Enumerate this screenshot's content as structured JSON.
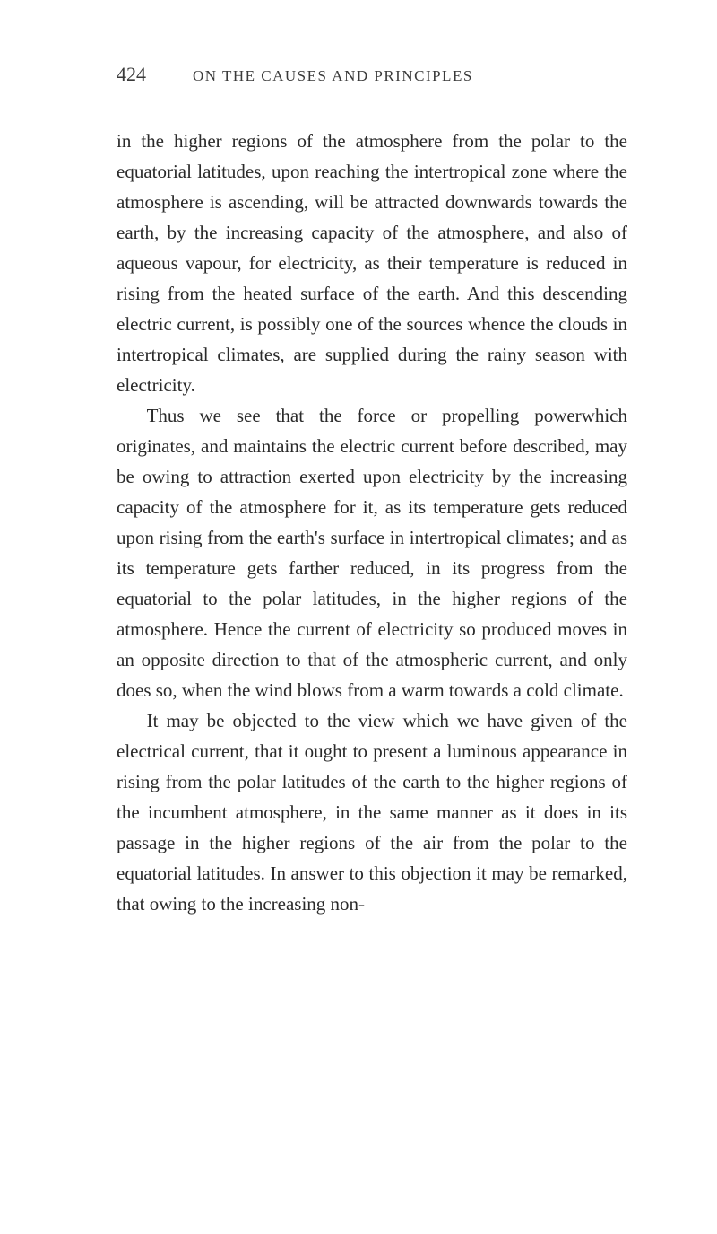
{
  "page": {
    "number": "424",
    "running_head": "ON THE CAUSES AND PRINCIPLES",
    "paragraphs": [
      "in the higher regions of the atmosphere from the polar to the equatorial latitudes, upon reaching the intertropical zone where the atmosphere is ascending, will be attracted downwards towards the earth, by the increasing capacity of the atmosphere, and also of aqueous vapour, for electricity, as their temperature is reduced in rising from the heated surface of the earth. And this descending electric current, is possibly one of the sources whence the clouds in intertropical climates, are supplied during the rainy season with electricity.",
      "Thus we see that the force or propelling powerwhich originates, and maintains the electric current before described, may be owing to attraction exerted upon electricity by the increasing capacity of the atmo­sphere for it, as its temperature gets reduced upon rising from the earth's surface in intertropical climates; and as its temperature gets farther reduced, in its progress from the equatorial to the polar latitudes, in the higher regions of the atmosphere. Hence the current of electricity so produced moves in an oppo­site direction to that of the atmospheric current, and only does so, when the wind blows from a warm to­wards a cold climate.",
      "It may be objected to the view which we have given of the electrical current, that it ought to present a luminous appearance in rising from the polar latitudes of the earth to the higher regions of the incumbent atmosphere, in the same manner as it does in its pass­age in the higher regions of the air from the polar to the equatorial latitudes. In answer to this objection it may be remarked, that owing to the increasing non-"
    ]
  },
  "style": {
    "background_color": "#ffffff",
    "text_color": "#2a2a2a",
    "header_color": "#3a3a3a",
    "body_font_size": 21,
    "page_number_font_size": 22,
    "running_head_font_size": 17,
    "line_height": 1.62
  }
}
